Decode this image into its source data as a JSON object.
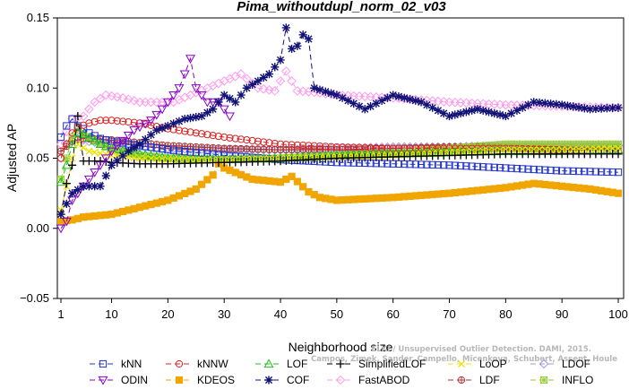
{
  "chart_data": {
    "type": "line",
    "title": "Pima_withoutdupl_norm_02_v03",
    "xlabel": "Neighborhood size",
    "ylabel": "Adjusted AP",
    "xlim": [
      1,
      100
    ],
    "ylim": [
      -0.05,
      0.15
    ],
    "x_ticks": [
      "1",
      "10",
      "20",
      "30",
      "40",
      "50",
      "60",
      "70",
      "80",
      "90",
      "100"
    ],
    "y_ticks": [
      "−0.05",
      "0.00",
      "0.05",
      "0.10",
      "0.15"
    ],
    "grid": false,
    "legend_position": "bottom",
    "watermark": {
      "line1": "ELKI / Unsupervised Outlier Detection. DAMI, 2015.",
      "line2": "Campos, Zimek, Sander, Campello, Micenkova, Schubert, Assent, Houle"
    },
    "series": [
      {
        "name": "kNN",
        "color": "#2233cc",
        "marker": "square",
        "dash": "6,4",
        "points": [
          [
            1,
            0.065
          ],
          [
            2,
            0.073
          ],
          [
            3,
            0.078
          ],
          [
            4,
            0.073
          ],
          [
            5,
            0.071
          ],
          [
            6,
            0.068
          ],
          [
            8,
            0.064
          ],
          [
            10,
            0.062
          ],
          [
            15,
            0.059
          ],
          [
            20,
            0.056
          ],
          [
            25,
            0.054
          ],
          [
            30,
            0.052
          ],
          [
            40,
            0.049
          ],
          [
            50,
            0.047
          ],
          [
            60,
            0.046
          ],
          [
            70,
            0.045
          ],
          [
            80,
            0.043
          ],
          [
            90,
            0.041
          ],
          [
            100,
            0.04
          ]
        ]
      },
      {
        "name": "kNNW",
        "color": "#dd2222",
        "marker": "circle",
        "dash": "6,4",
        "points": [
          [
            1,
            0.05
          ],
          [
            2,
            0.06
          ],
          [
            3,
            0.068
          ],
          [
            4,
            0.072
          ],
          [
            6,
            0.075
          ],
          [
            8,
            0.077
          ],
          [
            10,
            0.077
          ],
          [
            15,
            0.075
          ],
          [
            20,
            0.071
          ],
          [
            25,
            0.068
          ],
          [
            30,
            0.065
          ],
          [
            40,
            0.06
          ],
          [
            50,
            0.058
          ],
          [
            60,
            0.057
          ],
          [
            70,
            0.057
          ],
          [
            80,
            0.057
          ],
          [
            90,
            0.056
          ],
          [
            100,
            0.055
          ]
        ]
      },
      {
        "name": "LOF",
        "color": "#22bb22",
        "marker": "triangle",
        "dash": "6,4",
        "points": [
          [
            1,
            0.033
          ],
          [
            2,
            0.045
          ],
          [
            3,
            0.06
          ],
          [
            4,
            0.068
          ],
          [
            5,
            0.067
          ],
          [
            8,
            0.06
          ],
          [
            10,
            0.057
          ],
          [
            15,
            0.053
          ],
          [
            20,
            0.05
          ],
          [
            30,
            0.049
          ],
          [
            40,
            0.05
          ],
          [
            50,
            0.052
          ],
          [
            60,
            0.053
          ],
          [
            70,
            0.054
          ],
          [
            80,
            0.055
          ],
          [
            90,
            0.055
          ],
          [
            100,
            0.056
          ]
        ]
      },
      {
        "name": "SimplifiedLOF",
        "color": "#000000",
        "marker": "plus",
        "dash": "6,4",
        "points": [
          [
            1,
            0.01
          ],
          [
            2,
            0.032
          ],
          [
            3,
            0.045
          ],
          [
            4,
            0.08
          ],
          [
            5,
            0.048
          ],
          [
            8,
            0.048
          ],
          [
            10,
            0.047
          ],
          [
            15,
            0.046
          ],
          [
            20,
            0.046
          ],
          [
            30,
            0.047
          ],
          [
            40,
            0.048
          ],
          [
            50,
            0.05
          ],
          [
            60,
            0.051
          ],
          [
            70,
            0.052
          ],
          [
            80,
            0.053
          ],
          [
            90,
            0.053
          ],
          [
            100,
            0.053
          ]
        ]
      },
      {
        "name": "LoOP",
        "color": "#f0e000",
        "marker": "cross",
        "dash": "6,4",
        "points": [
          [
            1,
            0.013
          ],
          [
            2,
            0.03
          ],
          [
            3,
            0.05
          ],
          [
            4,
            0.06
          ],
          [
            6,
            0.055
          ],
          [
            10,
            0.052
          ],
          [
            15,
            0.05
          ],
          [
            20,
            0.049
          ],
          [
            30,
            0.049
          ],
          [
            40,
            0.05
          ],
          [
            50,
            0.051
          ],
          [
            60,
            0.052
          ],
          [
            70,
            0.054
          ],
          [
            80,
            0.056
          ],
          [
            90,
            0.056
          ],
          [
            100,
            0.057
          ]
        ]
      },
      {
        "name": "LDOF",
        "color": "#9999dd",
        "marker": "diamond",
        "dash": "6,4",
        "points": [
          [
            1,
            0.05
          ],
          [
            2,
            0.06
          ],
          [
            4,
            0.064
          ],
          [
            6,
            0.062
          ],
          [
            10,
            0.06
          ],
          [
            15,
            0.058
          ],
          [
            20,
            0.057
          ],
          [
            30,
            0.056
          ],
          [
            40,
            0.056
          ],
          [
            50,
            0.057
          ],
          [
            60,
            0.058
          ],
          [
            70,
            0.058
          ],
          [
            80,
            0.059
          ],
          [
            90,
            0.059
          ],
          [
            100,
            0.059
          ]
        ]
      },
      {
        "name": "ODIN",
        "color": "#8800cc",
        "marker": "triangle-down",
        "dash": "6,4",
        "points": [
          [
            1,
            0.0
          ],
          [
            2,
            0.005
          ],
          [
            3,
            0.02
          ],
          [
            5,
            0.03
          ],
          [
            7,
            0.04
          ],
          [
            10,
            0.055
          ],
          [
            14,
            0.07
          ],
          [
            17,
            0.077
          ],
          [
            19,
            0.085
          ],
          [
            21,
            0.095
          ],
          [
            22,
            0.1
          ],
          [
            23,
            0.11
          ],
          [
            24,
            0.121
          ],
          [
            25,
            0.1
          ],
          [
            27,
            0.09
          ],
          [
            29,
            0.09
          ],
          [
            31,
            0.08
          ]
        ]
      },
      {
        "name": "KDEOS",
        "color": "#f0a500",
        "marker": "filled-square",
        "dash": "6,4",
        "points": [
          [
            1,
            0.005
          ],
          [
            3,
            0.006
          ],
          [
            5,
            0.008
          ],
          [
            10,
            0.01
          ],
          [
            15,
            0.015
          ],
          [
            20,
            0.02
          ],
          [
            25,
            0.028
          ],
          [
            28,
            0.038
          ],
          [
            29,
            0.046
          ],
          [
            30,
            0.043
          ],
          [
            35,
            0.035
          ],
          [
            40,
            0.033
          ],
          [
            42,
            0.037
          ],
          [
            45,
            0.026
          ],
          [
            47,
            0.022
          ],
          [
            50,
            0.02
          ],
          [
            60,
            0.022
          ],
          [
            70,
            0.025
          ],
          [
            80,
            0.029
          ],
          [
            85,
            0.032
          ],
          [
            90,
            0.03
          ],
          [
            95,
            0.028
          ],
          [
            100,
            0.025
          ]
        ]
      },
      {
        "name": "COF",
        "color": "#111177",
        "marker": "asterisk",
        "dash": "6,4",
        "points": [
          [
            1,
            0.01
          ],
          [
            3,
            0.025
          ],
          [
            5,
            0.03
          ],
          [
            8,
            0.03
          ],
          [
            10,
            0.045
          ],
          [
            13,
            0.055
          ],
          [
            15,
            0.06
          ],
          [
            18,
            0.07
          ],
          [
            20,
            0.073
          ],
          [
            23,
            0.078
          ],
          [
            26,
            0.08
          ],
          [
            28,
            0.085
          ],
          [
            30,
            0.095
          ],
          [
            32,
            0.09
          ],
          [
            34,
            0.1
          ],
          [
            36,
            0.105
          ],
          [
            38,
            0.11
          ],
          [
            40,
            0.12
          ],
          [
            41,
            0.143
          ],
          [
            42,
            0.128
          ],
          [
            43,
            0.13
          ],
          [
            44,
            0.138
          ],
          [
            45,
            0.135
          ],
          [
            46,
            0.1
          ],
          [
            50,
            0.095
          ],
          [
            55,
            0.085
          ],
          [
            60,
            0.095
          ],
          [
            65,
            0.09
          ],
          [
            70,
            0.08
          ],
          [
            75,
            0.085
          ],
          [
            80,
            0.08
          ],
          [
            85,
            0.09
          ],
          [
            90,
            0.088
          ],
          [
            95,
            0.085
          ],
          [
            100,
            0.086
          ]
        ]
      },
      {
        "name": "FastABOD",
        "color": "#ff99ee",
        "marker": "diamond",
        "dash": "6,4",
        "points": [
          [
            1,
            0.06
          ],
          [
            3,
            0.078
          ],
          [
            5,
            0.08
          ],
          [
            7,
            0.09
          ],
          [
            9,
            0.095
          ],
          [
            12,
            0.093
          ],
          [
            15,
            0.09
          ],
          [
            18,
            0.09
          ],
          [
            21,
            0.09
          ],
          [
            24,
            0.095
          ],
          [
            27,
            0.1
          ],
          [
            30,
            0.105
          ],
          [
            33,
            0.11
          ],
          [
            36,
            0.1
          ],
          [
            39,
            0.098
          ],
          [
            41,
            0.112
          ],
          [
            43,
            0.098
          ],
          [
            46,
            0.097
          ],
          [
            50,
            0.095
          ],
          [
            60,
            0.093
          ],
          [
            70,
            0.09
          ],
          [
            80,
            0.088
          ],
          [
            90,
            0.087
          ],
          [
            100,
            0.086
          ]
        ]
      },
      {
        "name": "LDF",
        "color": "#aa3333",
        "marker": "circle-plus",
        "dash": "6,4",
        "points": [
          [
            1,
            0.055
          ],
          [
            3,
            0.062
          ],
          [
            5,
            0.064
          ],
          [
            10,
            0.063
          ],
          [
            15,
            0.061
          ],
          [
            20,
            0.059
          ],
          [
            30,
            0.057
          ],
          [
            40,
            0.056
          ],
          [
            50,
            0.056
          ],
          [
            60,
            0.057
          ],
          [
            70,
            0.058
          ],
          [
            80,
            0.058
          ],
          [
            90,
            0.058
          ],
          [
            100,
            0.058
          ]
        ]
      },
      {
        "name": "INFLO",
        "color": "#99cc33",
        "marker": "star-box",
        "dash": "6,4",
        "points": [
          [
            1,
            0.035
          ],
          [
            2,
            0.05
          ],
          [
            3,
            0.065
          ],
          [
            4,
            0.07
          ],
          [
            6,
            0.065
          ],
          [
            10,
            0.056
          ],
          [
            15,
            0.052
          ],
          [
            20,
            0.05
          ],
          [
            30,
            0.049
          ],
          [
            40,
            0.05
          ],
          [
            50,
            0.052
          ],
          [
            60,
            0.054
          ],
          [
            70,
            0.057
          ],
          [
            80,
            0.06
          ],
          [
            90,
            0.06
          ],
          [
            100,
            0.06
          ]
        ]
      }
    ]
  }
}
